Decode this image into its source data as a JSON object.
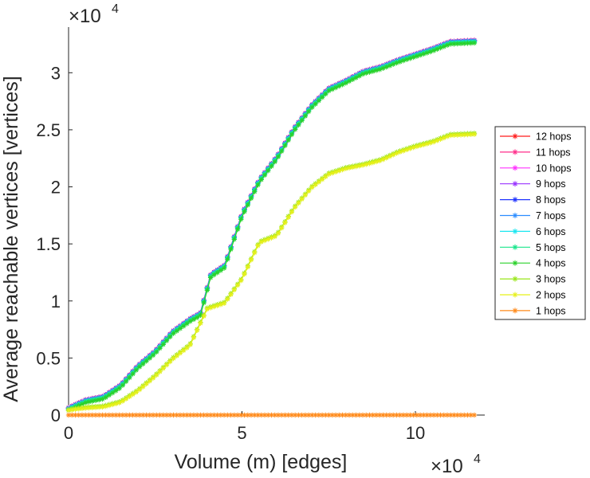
{
  "chart_data": {
    "type": "line",
    "title": "",
    "xlabel": "Volume (m) [edges]",
    "ylabel": "Average reachable vertices [vertices]",
    "x_multiplier": "×10",
    "x_multiplier_exp": "4",
    "y_multiplier": "×10",
    "y_multiplier_exp": "4",
    "xlim": [
      0,
      12
    ],
    "ylim": [
      0,
      3.4
    ],
    "x_ticks": [
      0,
      5,
      10
    ],
    "x_tick_labels": [
      "0",
      "5",
      "10"
    ],
    "y_ticks": [
      0,
      0.5,
      1,
      1.5,
      2,
      2.5,
      3
    ],
    "y_tick_labels": [
      "0",
      "0.5",
      "1",
      "1.5",
      "2",
      "2.5",
      "3"
    ],
    "grid": false,
    "legend_position": "right",
    "marker": "asterisk",
    "x_end": 11.7,
    "series": [
      {
        "name": "12 hops",
        "color": "#ff1a1a",
        "profile": "high",
        "offset": 0.015
      },
      {
        "name": "11 hops",
        "color": "#ff2d8a",
        "profile": "high",
        "offset": 0.015
      },
      {
        "name": "10 hops",
        "color": "#ff33ff",
        "profile": "high",
        "offset": 0.012
      },
      {
        "name": "9 hops",
        "color": "#9933ff",
        "profile": "high",
        "offset": 0.012
      },
      {
        "name": "8 hops",
        "color": "#1f33ff",
        "profile": "high",
        "offset": 0.01
      },
      {
        "name": "7 hops",
        "color": "#2a8cff",
        "profile": "high",
        "offset": 0.008
      },
      {
        "name": "6 hops",
        "color": "#19e6f0",
        "profile": "high",
        "offset": 0.005
      },
      {
        "name": "5 hops",
        "color": "#19e68c",
        "profile": "high",
        "offset": 0.0
      },
      {
        "name": "4 hops",
        "color": "#2ad12a",
        "profile": "high",
        "offset": -0.01
      },
      {
        "name": "3 hops",
        "color": "#99e619",
        "profile": "mid",
        "offset": 0.0
      },
      {
        "name": "2 hops",
        "color": "#e6f019",
        "profile": "mid",
        "offset": -0.01
      },
      {
        "name": "1 hops",
        "color": "#ff8a1a",
        "profile": "zero",
        "offset": 0.0
      }
    ],
    "profiles": {
      "high": {
        "x": [
          0,
          0.2,
          0.5,
          1.0,
          1.5,
          2.0,
          2.5,
          3.0,
          3.5,
          3.8,
          4.1,
          4.5,
          5.0,
          5.5,
          6.0,
          6.5,
          7.0,
          7.5,
          8.0,
          8.5,
          9.0,
          9.5,
          10.0,
          10.5,
          11.0,
          11.7
        ],
        "y": [
          0.05,
          0.08,
          0.12,
          0.15,
          0.25,
          0.42,
          0.55,
          0.72,
          0.83,
          0.88,
          1.22,
          1.3,
          1.75,
          2.05,
          2.25,
          2.5,
          2.7,
          2.85,
          2.92,
          3.0,
          3.04,
          3.1,
          3.15,
          3.2,
          3.26,
          3.27
        ]
      },
      "mid": {
        "x": [
          0,
          0.2,
          0.5,
          1.0,
          1.5,
          2.0,
          2.5,
          3.0,
          3.5,
          4.0,
          4.5,
          5.0,
          5.5,
          6.0,
          6.5,
          7.0,
          7.5,
          8.0,
          8.5,
          9.0,
          9.5,
          10.0,
          10.5,
          11.0,
          11.7
        ],
        "y": [
          0.05,
          0.06,
          0.07,
          0.08,
          0.12,
          0.22,
          0.35,
          0.5,
          0.62,
          0.94,
          0.99,
          1.2,
          1.52,
          1.58,
          1.82,
          2.0,
          2.12,
          2.17,
          2.2,
          2.24,
          2.31,
          2.36,
          2.4,
          2.46,
          2.47
        ]
      },
      "zero": {
        "x": [
          0,
          11.7
        ],
        "y": [
          0.0,
          0.0
        ]
      }
    }
  }
}
